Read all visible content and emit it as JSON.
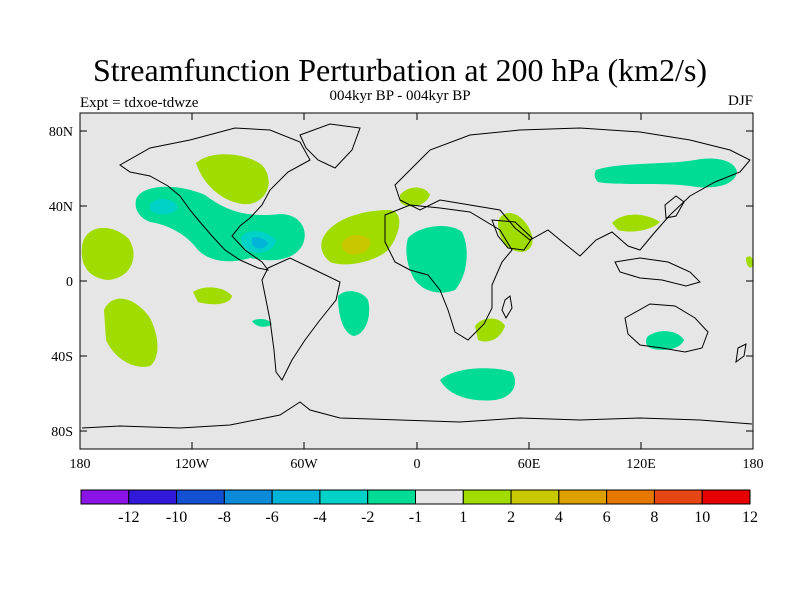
{
  "title": "Streamfunction Perturbation at 200 hPa (km2/s)",
  "subtitle": "004kyr BP - 004kyr BP",
  "left_label": "Expt = tdxoe-tdwze",
  "right_label": "DJF",
  "lat_labels": [
    "80N",
    "40N",
    "0",
    "40S",
    "80S"
  ],
  "lon_labels": [
    "180",
    "120W",
    "60W",
    "0",
    "60E",
    "120E",
    "180"
  ],
  "colorbar": {
    "labels": [
      "-12",
      "-10",
      "-8",
      "-6",
      "-4",
      "-2",
      "-1",
      "1",
      "2",
      "4",
      "6",
      "8",
      "10",
      "12"
    ],
    "colors": [
      "#8a14e6",
      "#3218d8",
      "#1450d2",
      "#0a8ad8",
      "#00b4d8",
      "#00d2c8",
      "#00dc96",
      "#e6e6e6",
      "#a0dc00",
      "#c8c800",
      "#dca000",
      "#e67800",
      "#e64614",
      "#e60000"
    ]
  },
  "colors": {
    "background": "#e6e6e6",
    "land_outline": "#000000"
  }
}
